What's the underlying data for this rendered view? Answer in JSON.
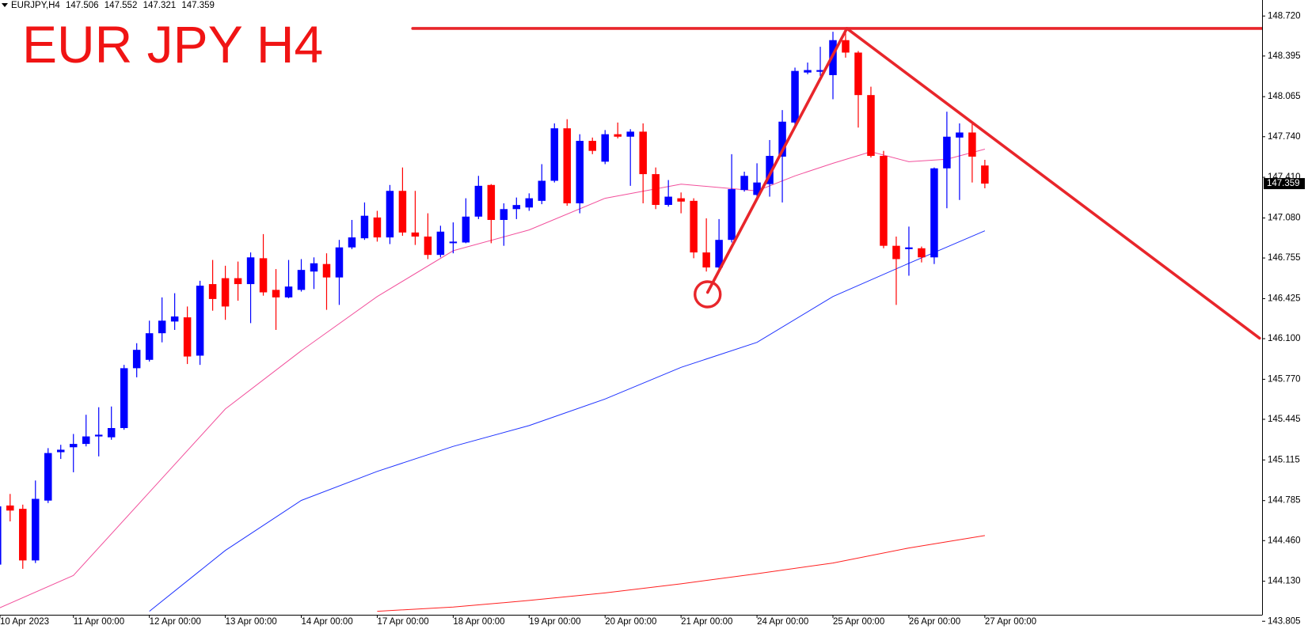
{
  "chart_data": {
    "type": "candlestick",
    "title": "EUR JPY H4",
    "symbol": "EURJPY,H4",
    "quote": [
      147.506,
      147.552,
      147.321,
      147.359
    ],
    "last_price": 147.359,
    "up_color": "#0000ff",
    "down_color": "#ff0000",
    "open": [
      144.265,
      144.745,
      144.718,
      144.299,
      144.785,
      145.178,
      145.218,
      145.245,
      145.306,
      145.299,
      145.374,
      145.86,
      145.928,
      146.144,
      146.239,
      146.273,
      145.962,
      146.543,
      146.591,
      146.591,
      146.543,
      146.753,
      146.496,
      146.435,
      146.496,
      146.645,
      146.706,
      146.597,
      146.841,
      146.915,
      147.084,
      146.922,
      147.3,
      146.962,
      146.929,
      146.78,
      146.875,
      146.881,
      147.091,
      147.348,
      147.064,
      147.152,
      147.165,
      147.219,
      147.382,
      147.808,
      147.199,
      147.706,
      147.537,
      147.76,
      147.74,
      147.781,
      147.436,
      147.186,
      147.24,
      147.219,
      146.8,
      146.678,
      146.902,
      147.307,
      147.267,
      147.355,
      147.578,
      147.855,
      148.261,
      148.267,
      148.24,
      148.524,
      148.423,
      148.078,
      147.584,
      146.854,
      146.827,
      146.834,
      146.76,
      147.483,
      147.733,
      147.774,
      147.506
    ],
    "high": [
      144.785,
      144.839,
      144.752,
      144.948,
      145.211,
      145.238,
      145.326,
      145.482,
      145.543,
      145.549,
      145.887,
      146.063,
      146.246,
      146.435,
      146.469,
      146.361,
      146.57,
      146.739,
      146.692,
      146.726,
      146.8,
      146.949,
      146.665,
      146.739,
      146.746,
      146.76,
      146.793,
      146.902,
      147.064,
      147.206,
      147.138,
      147.348,
      147.49,
      147.3,
      147.118,
      147.017,
      147.044,
      147.24,
      147.422,
      147.355,
      147.199,
      147.246,
      147.28,
      147.517,
      147.848,
      147.882,
      147.76,
      147.733,
      147.794,
      147.855,
      147.801,
      147.848,
      147.49,
      147.388,
      147.287,
      147.24,
      147.077,
      147.071,
      147.598,
      147.456,
      147.524,
      147.713,
      147.956,
      148.301,
      148.342,
      148.47,
      148.592,
      148.585,
      148.436,
      148.146,
      147.625,
      146.929,
      147.01,
      146.848,
      147.49,
      147.943,
      147.848,
      147.855,
      147.552
    ],
    "low": [
      144.244,
      144.616,
      144.231,
      144.278,
      144.765,
      145.123,
      145.015,
      145.225,
      145.144,
      145.279,
      145.36,
      145.786,
      145.914,
      146.07,
      146.171,
      145.894,
      145.887,
      146.327,
      146.253,
      146.408,
      146.226,
      146.449,
      146.171,
      146.428,
      146.482,
      146.503,
      146.334,
      146.374,
      146.827,
      146.902,
      146.888,
      146.868,
      146.935,
      146.861,
      146.746,
      146.76,
      146.793,
      146.875,
      147.071,
      146.875,
      146.854,
      147.071,
      147.138,
      147.192,
      147.368,
      147.179,
      147.118,
      147.598,
      147.517,
      147.726,
      147.341,
      147.199,
      147.152,
      147.172,
      147.118,
      146.753,
      146.645,
      146.645,
      146.881,
      147.294,
      147.246,
      147.253,
      147.206,
      147.835,
      148.247,
      148.234,
      148.044,
      148.382,
      147.814,
      147.571,
      146.834,
      146.374,
      146.611,
      146.719,
      146.706,
      147.159,
      147.226,
      147.368,
      147.321
    ],
    "close": [
      144.738,
      144.704,
      144.299,
      144.799,
      145.171,
      145.198,
      145.245,
      145.306,
      145.32,
      145.374,
      145.86,
      146.009,
      146.144,
      146.246,
      146.28,
      145.955,
      146.53,
      146.422,
      146.361,
      146.543,
      146.76,
      146.476,
      146.435,
      146.523,
      146.658,
      146.712,
      146.597,
      146.841,
      146.922,
      147.098,
      146.922,
      147.3,
      146.962,
      146.929,
      146.78,
      146.969,
      146.888,
      147.091,
      147.341,
      147.064,
      147.152,
      147.185,
      147.24,
      147.382,
      147.808,
      147.199,
      147.706,
      147.625,
      147.76,
      147.74,
      147.781,
      147.436,
      147.186,
      147.253,
      147.213,
      146.8,
      146.678,
      146.902,
      147.314,
      147.422,
      147.368,
      147.584,
      147.862,
      148.274,
      148.281,
      148.281,
      148.524,
      148.423,
      148.078,
      147.584,
      146.854,
      146.746,
      146.841,
      146.76,
      147.483,
      147.74,
      147.774,
      147.578,
      147.359
    ],
    "series": [
      {
        "type": "line",
        "color": "#f2509c",
        "x": [
          0,
          6,
          12,
          18,
          24,
          30,
          36,
          42,
          48,
          54,
          60,
          63,
          66,
          69,
          72,
          75,
          78
        ],
        "values": [
          143.906,
          144.177,
          144.853,
          145.529,
          146.002,
          146.442,
          146.814,
          146.983,
          147.24,
          147.355,
          147.3,
          147.422,
          147.524,
          147.618,
          147.537,
          147.557,
          147.639
        ]
      },
      {
        "type": "line",
        "color": "#1f33ff",
        "x": [
          12,
          18,
          24,
          30,
          36,
          42,
          48,
          54,
          60,
          66,
          72,
          78
        ],
        "values": [
          143.886,
          144.38,
          144.786,
          145.022,
          145.225,
          145.394,
          145.61,
          145.867,
          146.07,
          146.442,
          146.712,
          146.976
        ]
      },
      {
        "type": "line",
        "color": "#ff2020",
        "x": [
          30,
          36,
          42,
          48,
          54,
          60,
          66,
          72,
          78
        ],
        "values": [
          143.886,
          143.92,
          143.974,
          144.035,
          144.109,
          144.191,
          144.278,
          144.4,
          144.501
        ]
      }
    ],
    "annotations": {
      "color": "#e8262b",
      "lines": [
        {
          "x": [
            32.8,
            99.9
          ],
          "values": [
            148.619,
            148.619
          ]
        },
        {
          "x": [
            56.1,
            67.1
          ],
          "values": [
            146.476,
            148.619
          ]
        },
        {
          "x": [
            67.1,
            99.7
          ],
          "values": [
            148.619,
            146.104
          ]
        }
      ],
      "circles": [
        {
          "x": 56.1,
          "value": 146.46
        }
      ]
    },
    "ylim": [
      143.8,
      148.85
    ],
    "yticks": [
      {
        "value": 148.72,
        "label": "148.720"
      },
      148.395,
      148.065,
      {
        "value": 147.74,
        "label": "147.740"
      },
      {
        "value": 147.41,
        "label": "147.410"
      },
      {
        "value": 147.08,
        "label": "147.080"
      },
      146.755,
      146.425,
      {
        "value": 146.1,
        "label": "146.100"
      },
      {
        "value": 145.77,
        "label": "145.770"
      },
      145.445,
      145.115,
      144.785,
      {
        "value": 144.46,
        "label": "144.460"
      },
      {
        "value": 144.13,
        "label": "144.130"
      },
      143.805
    ],
    "xlim": [
      0.2,
      99.9
    ],
    "xticks": [
      {
        "value": 0,
        "label": "10 Apr 2023"
      },
      {
        "value": 6,
        "label": "11 Apr 00:00"
      },
      {
        "value": 12,
        "label": "12 Apr 00:00"
      },
      {
        "value": 18,
        "label": "13 Apr 00:00"
      },
      {
        "value": 24,
        "label": "14 Apr 00:00"
      },
      {
        "value": 30,
        "label": "17 Apr 00:00"
      },
      {
        "value": 36,
        "label": "18 Apr 00:00"
      },
      {
        "value": 42,
        "label": "19 Apr 00:00"
      },
      {
        "value": 48,
        "label": "20 Apr 00:00"
      },
      {
        "value": 54,
        "label": "21 Apr 00:00"
      },
      {
        "value": 60,
        "label": "24 Apr 00:00"
      },
      {
        "value": 66,
        "label": "25 Apr 00:00"
      },
      {
        "value": 72,
        "label": "26 Apr 00:00"
      },
      {
        "value": 78,
        "label": "27 Apr 00:00"
      }
    ]
  }
}
